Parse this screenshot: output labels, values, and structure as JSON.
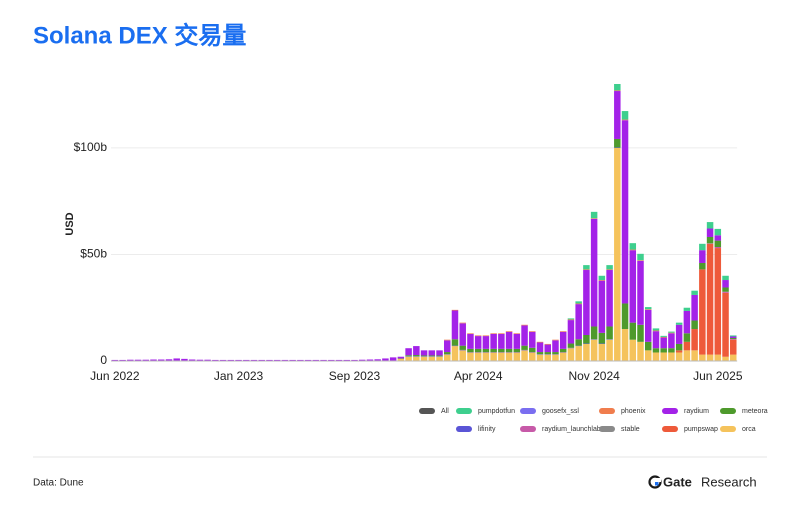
{
  "chart_data": {
    "type": "stacked_bar",
    "title": "Solana DEX 交易量",
    "y_label": "USD",
    "ylim": [
      0,
      130
    ],
    "yticks": [
      0,
      {
        "value": 50,
        "label": "$50b"
      },
      {
        "value": 100,
        "label": "$100b"
      }
    ],
    "grid": true,
    "categories": [
      "Jun 2022",
      null,
      null,
      null,
      null,
      null,
      null,
      null,
      null,
      null,
      null,
      null,
      null,
      null,
      null,
      null,
      "Jan 2023",
      null,
      null,
      null,
      null,
      null,
      null,
      null,
      null,
      null,
      null,
      null,
      null,
      null,
      null,
      "Sep 2023",
      null,
      null,
      null,
      null,
      null,
      null,
      null,
      null,
      null,
      null,
      null,
      null,
      null,
      null,
      null,
      "Apr 2024",
      null,
      null,
      null,
      null,
      null,
      null,
      null,
      null,
      null,
      null,
      null,
      null,
      null,
      null,
      "Nov 2024",
      null,
      null,
      null,
      null,
      null,
      null,
      null,
      null,
      null,
      null,
      null,
      null,
      null,
      null,
      null,
      "Jun 2025",
      null,
      null
    ],
    "series": [
      {
        "name": "All",
        "color": "#555555",
        "values": [
          null,
          null,
          null,
          null,
          null,
          null,
          null,
          null,
          null,
          null,
          null,
          null,
          null,
          null,
          null,
          null,
          null,
          null,
          null,
          null,
          null,
          null,
          null,
          null,
          null,
          null,
          null,
          null,
          null,
          null,
          null,
          null,
          null,
          null,
          null,
          null,
          null,
          null,
          null,
          null,
          null,
          null,
          null,
          null,
          null,
          null,
          null,
          null,
          null,
          null,
          null,
          null,
          null,
          null,
          null,
          null,
          null,
          null,
          null,
          null,
          null,
          null,
          null,
          null,
          null,
          null,
          null,
          null,
          null,
          null,
          null,
          null,
          null,
          null,
          null,
          null,
          null,
          null,
          null,
          null,
          null
        ]
      },
      {
        "name": "pumpdotfun",
        "color": "#3ecf8e",
        "values": [
          0,
          0,
          0,
          0,
          0,
          0,
          0,
          0,
          0,
          0,
          0,
          0,
          0,
          0,
          0,
          0,
          0,
          0,
          0,
          0,
          0,
          0,
          0,
          0,
          0,
          0,
          0,
          0,
          0,
          0,
          0,
          0,
          0,
          0,
          0,
          0,
          0,
          0,
          0,
          0,
          0,
          0,
          0,
          0,
          0,
          0,
          0,
          0,
          0,
          0,
          0,
          0,
          0,
          0,
          0,
          0,
          0,
          0,
          0,
          0.5,
          1,
          2,
          3,
          2,
          2,
          3,
          4,
          3,
          3,
          1,
          1,
          0.5,
          0.5,
          1,
          1.5,
          2,
          3,
          3,
          3,
          2,
          0.5
        ]
      },
      {
        "name": "goosefx_ssl",
        "color": "#7a6ef0",
        "values": [
          0,
          0,
          0,
          0,
          0,
          0,
          0,
          0,
          0,
          0,
          0,
          0,
          0,
          0,
          0,
          0,
          0,
          0,
          0,
          0,
          0,
          0,
          0,
          0,
          0,
          0,
          0,
          0,
          0,
          0,
          0,
          0,
          0,
          0,
          0,
          0,
          0,
          0,
          0,
          0,
          0,
          0,
          0,
          0,
          0,
          0,
          0,
          0,
          0,
          0,
          0,
          0,
          0,
          0,
          0,
          0,
          0,
          0,
          0,
          0,
          0,
          0,
          0,
          0,
          0,
          0,
          0,
          0,
          0,
          0,
          0,
          0,
          0,
          0,
          0,
          0,
          0,
          0,
          0,
          0,
          0
        ]
      },
      {
        "name": "phoenix",
        "color": "#f07d4d",
        "values": [
          0,
          0,
          0,
          0,
          0,
          0,
          0,
          0,
          0,
          0,
          0,
          0,
          0,
          0,
          0,
          0,
          0,
          0,
          0,
          0,
          0,
          0,
          0,
          0,
          0,
          0,
          0,
          0,
          0,
          0,
          0,
          0,
          0,
          0,
          0,
          0,
          0,
          0,
          0,
          0,
          0,
          0,
          0,
          0.3,
          0.3,
          0.3,
          0.3,
          0.3,
          0.3,
          0.3,
          0.3,
          0.3,
          0.3,
          0.3,
          0.3,
          0.3,
          0.3,
          0.3,
          0.3,
          0.3,
          0.3,
          0.3,
          0.3,
          0.3,
          0.3,
          0.3,
          0.3,
          0.3,
          0.3,
          0.3,
          0.3,
          0.3,
          0.3,
          0,
          0,
          0,
          0,
          0,
          0,
          0,
          0
        ]
      },
      {
        "name": "raydium",
        "color": "#a322e8",
        "values": [
          0.3,
          0.3,
          0.4,
          0.4,
          0.4,
          0.5,
          0.5,
          0.6,
          1,
          0.8,
          0.5,
          0.4,
          0.4,
          0.3,
          0.3,
          0.3,
          0.3,
          0.3,
          0.3,
          0.3,
          0.3,
          0.3,
          0.3,
          0.3,
          0.3,
          0.3,
          0.3,
          0.3,
          0.3,
          0.3,
          0.3,
          0.3,
          0.4,
          0.5,
          0.6,
          1,
          1.5,
          0.8,
          3.3,
          4.2,
          2.4,
          2.4,
          2.4,
          5.5,
          13.5,
          10.5,
          7,
          6,
          6,
          7,
          7,
          8,
          7,
          9.5,
          7.5,
          4.5,
          3.5,
          5.5,
          8,
          11,
          16.5,
          30.5,
          50.5,
          24.5,
          26.5,
          22.5,
          86,
          34,
          30,
          15,
          8,
          5,
          7,
          9,
          10.5,
          12,
          6,
          4,
          2.5,
          3.5,
          0.7
        ]
      },
      {
        "name": "meteora",
        "color": "#4e9a2c",
        "values": [
          0,
          0,
          0,
          0,
          0,
          0,
          0,
          0,
          0,
          0,
          0,
          0,
          0,
          0,
          0,
          0,
          0,
          0,
          0,
          0,
          0,
          0,
          0,
          0,
          0,
          0,
          0,
          0,
          0,
          0,
          0,
          0,
          0,
          0,
          0,
          0,
          0,
          0.2,
          0.5,
          0.6,
          0.4,
          0.4,
          0.4,
          1,
          3,
          2,
          1.5,
          1.5,
          1.5,
          1.5,
          1.5,
          1.5,
          1.5,
          2,
          2,
          1,
          1,
          1,
          1.5,
          2,
          3,
          4,
          6,
          5,
          6,
          4,
          12,
          8,
          8,
          4,
          2,
          2,
          2,
          3,
          4,
          4,
          3,
          3,
          3,
          2,
          0.5
        ]
      },
      {
        "name": "lifinity",
        "color": "#5a55d6",
        "values": [
          0,
          0,
          0,
          0,
          0,
          0,
          0,
          0,
          0,
          0,
          0,
          0,
          0,
          0,
          0,
          0,
          0,
          0,
          0,
          0,
          0,
          0,
          0,
          0,
          0,
          0,
          0,
          0,
          0,
          0,
          0,
          0,
          0,
          0,
          0,
          0,
          0,
          0,
          0.2,
          0.2,
          0.2,
          0.2,
          0.2,
          0.2,
          0.2,
          0.2,
          0.2,
          0.2,
          0.2,
          0.2,
          0.2,
          0.2,
          0.2,
          0.2,
          0.2,
          0.2,
          0.2,
          0.2,
          0.2,
          0.2,
          0.2,
          0.2,
          0.2,
          0.2,
          0.2,
          0.2,
          0,
          0,
          0,
          0,
          0,
          0,
          0,
          0,
          0,
          0,
          0,
          0,
          0,
          0,
          0
        ]
      },
      {
        "name": "raydium_launchlab",
        "color": "#c75aa8",
        "values": [
          0,
          0,
          0,
          0,
          0,
          0,
          0,
          0,
          0,
          0,
          0,
          0,
          0,
          0,
          0,
          0,
          0,
          0,
          0,
          0,
          0,
          0,
          0,
          0,
          0,
          0,
          0,
          0,
          0,
          0,
          0,
          0,
          0,
          0,
          0,
          0,
          0,
          0,
          0,
          0,
          0,
          0,
          0,
          0,
          0,
          0,
          0,
          0,
          0,
          0,
          0,
          0,
          0,
          0,
          0,
          0,
          0,
          0,
          0,
          0,
          0,
          0,
          0,
          0,
          0,
          0,
          0,
          0,
          0,
          0,
          0,
          0,
          0,
          0,
          0,
          0,
          0,
          0.2,
          0.5,
          0.5,
          0.3
        ]
      },
      {
        "name": "stable",
        "color": "#8a8a8a",
        "values": [
          0,
          0,
          0,
          0,
          0,
          0,
          0,
          0,
          0,
          0,
          0,
          0,
          0,
          0,
          0,
          0,
          0,
          0,
          0,
          0,
          0,
          0,
          0,
          0,
          0,
          0,
          0,
          0,
          0,
          0,
          0,
          0,
          0,
          0,
          0,
          0,
          0,
          0,
          0,
          0,
          0,
          0,
          0,
          0,
          0,
          0,
          0,
          0,
          0,
          0,
          0,
          0,
          0,
          0,
          0,
          0,
          0,
          0,
          0,
          0,
          0,
          0,
          0,
          0,
          0,
          0,
          0,
          0,
          0,
          0,
          0,
          0,
          0,
          0,
          0,
          0,
          0,
          0,
          0,
          0,
          0
        ]
      },
      {
        "name": "pumpswap",
        "color": "#ee5a3a",
        "values": [
          0,
          0,
          0,
          0,
          0,
          0,
          0,
          0,
          0,
          0,
          0,
          0,
          0,
          0,
          0,
          0,
          0,
          0,
          0,
          0,
          0,
          0,
          0,
          0,
          0,
          0,
          0,
          0,
          0,
          0,
          0,
          0,
          0,
          0,
          0,
          0,
          0,
          0,
          0,
          0,
          0,
          0,
          0,
          0,
          0,
          0,
          0,
          0,
          0,
          0,
          0,
          0,
          0,
          0,
          0,
          0,
          0,
          0,
          0,
          0,
          0,
          0,
          0,
          0,
          0,
          0,
          0,
          0,
          0,
          0,
          0,
          0,
          0,
          1,
          4,
          10,
          40,
          52,
          50,
          30,
          7
        ]
      },
      {
        "name": "orca",
        "color": "#f5c35c",
        "values": [
          0.2,
          0.2,
          0.2,
          0.2,
          0.2,
          0.2,
          0.2,
          0.2,
          0.2,
          0.2,
          0.2,
          0.2,
          0.2,
          0.2,
          0.2,
          0.2,
          0.2,
          0.2,
          0.2,
          0.2,
          0.2,
          0.2,
          0.2,
          0.2,
          0.2,
          0.2,
          0.2,
          0.2,
          0.2,
          0.2,
          0.2,
          0.2,
          0.2,
          0.2,
          0.2,
          0.2,
          0.2,
          1,
          2,
          2,
          2,
          2,
          2,
          3,
          7,
          5,
          4,
          4,
          4,
          4,
          4,
          4,
          4,
          5,
          4,
          3,
          3,
          3,
          4,
          6,
          7,
          8,
          10,
          8,
          10,
          100,
          15,
          10,
          9,
          5,
          4,
          4,
          4,
          4,
          5,
          5,
          3,
          3,
          3,
          2,
          3
        ]
      }
    ]
  },
  "source": "Data: Dune",
  "brand": "Gate",
  "brand_suffix": "Research"
}
